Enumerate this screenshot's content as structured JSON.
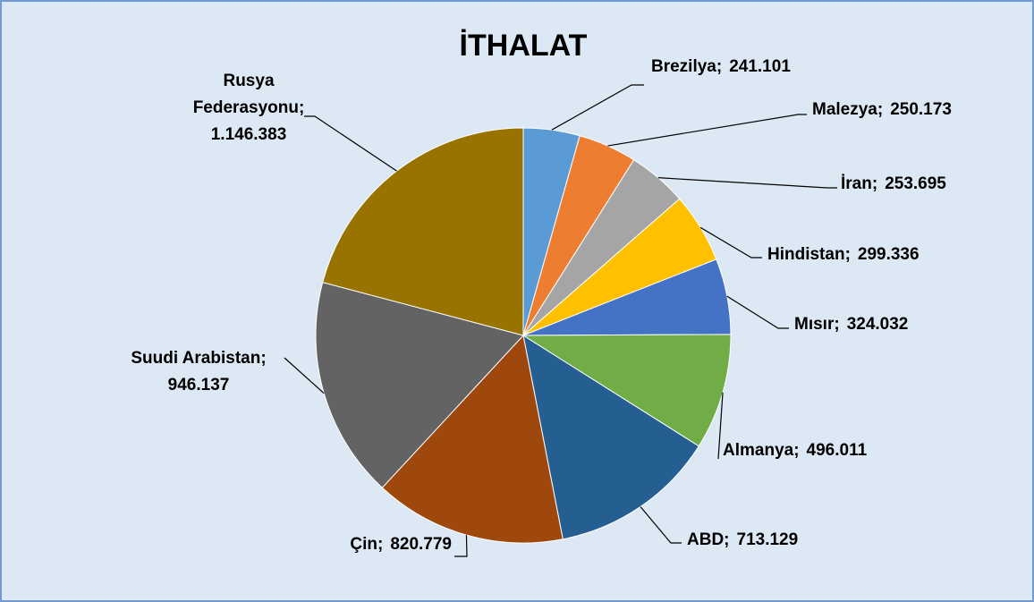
{
  "chart_data": {
    "type": "pie",
    "title": "İTHALAT",
    "label_separator": ";",
    "categories": [
      "Brezilya",
      "Malezya",
      "İran",
      "Hindistan",
      "Mısır",
      "Almanya",
      "ABD",
      "Çin",
      "Suudi Arabistan",
      "Rusya Federasyonu"
    ],
    "values": [
      241101,
      250173,
      253695,
      299336,
      324032,
      496011,
      713129,
      820779,
      946137,
      1146383
    ],
    "value_labels": [
      "241.101",
      "250.173",
      "253.695",
      "299.336",
      "324.032",
      "496.011",
      "713.129",
      "820.779",
      "946.137",
      "1.146.383"
    ],
    "colors": [
      "#5b9bd5",
      "#ed7d31",
      "#a5a5a5",
      "#ffc000",
      "#4472c4",
      "#70ad47",
      "#255e91",
      "#9e480e",
      "#636363",
      "#997300"
    ]
  }
}
